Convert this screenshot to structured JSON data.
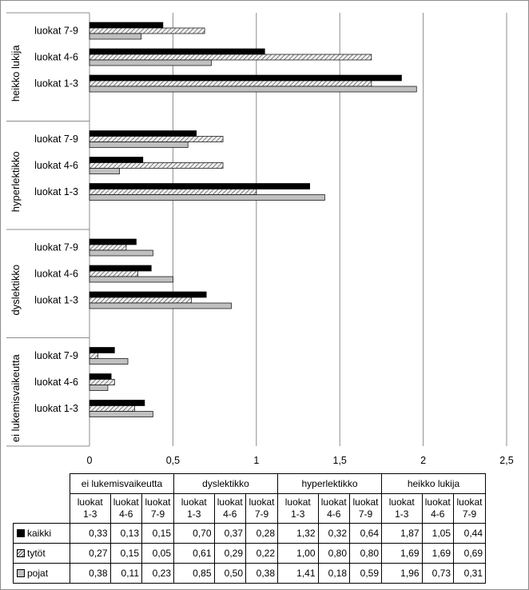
{
  "chart_data": {
    "type": "bar",
    "orientation": "horizontal",
    "groups": [
      "ei lukemisvaikeutta",
      "dyslektikko",
      "hyperlektikko",
      "heikko lukija"
    ],
    "subcategories": [
      "luokat 1-3",
      "luokat 4-6",
      "luokat 7-9"
    ],
    "table_subheaders": [
      {
        "line1": "luokat",
        "line2": "1-3"
      },
      {
        "line1": "luokat",
        "line2": "4-6"
      },
      {
        "line1": "luokat",
        "line2": "7-9"
      }
    ],
    "series": [
      {
        "name": "kaikki",
        "color": "#000000",
        "values": [
          [
            0.33,
            0.13,
            0.15
          ],
          [
            0.7,
            0.37,
            0.28
          ],
          [
            1.32,
            0.32,
            0.64
          ],
          [
            1.87,
            1.05,
            0.44
          ]
        ]
      },
      {
        "name": "tytöt",
        "color": "#c8c8c8",
        "pattern": "hatch",
        "values": [
          [
            0.27,
            0.15,
            0.05
          ],
          [
            0.61,
            0.29,
            0.22
          ],
          [
            1.0,
            0.8,
            0.8
          ],
          [
            1.69,
            1.69,
            0.69
          ]
        ]
      },
      {
        "name": "pojat",
        "color": "#c0c0c0",
        "values": [
          [
            0.38,
            0.11,
            0.23
          ],
          [
            0.85,
            0.5,
            0.38
          ],
          [
            1.41,
            0.18,
            0.59
          ],
          [
            1.96,
            0.73,
            0.31
          ]
        ]
      }
    ],
    "display_values": [
      [
        [
          "0,33",
          "0,13",
          "0,15"
        ],
        [
          "0,70",
          "0,37",
          "0,28"
        ],
        [
          "1,32",
          "0,32",
          "0,64"
        ],
        [
          "1,87",
          "1,05",
          "0,44"
        ]
      ],
      [
        [
          "0,27",
          "0,15",
          "0,05"
        ],
        [
          "0,61",
          "0,29",
          "0,22"
        ],
        [
          "1,00",
          "0,80",
          "0,80"
        ],
        [
          "1,69",
          "1,69",
          "0,69"
        ]
      ],
      [
        [
          "0,38",
          "0,11",
          "0,23"
        ],
        [
          "0,85",
          "0,50",
          "0,38"
        ],
        [
          "1,41",
          "0,18",
          "0,59"
        ],
        [
          "1,96",
          "0,73",
          "0,31"
        ]
      ]
    ],
    "xlim": [
      0,
      2.5
    ],
    "xticks": [
      0,
      0.5,
      1,
      1.5,
      2,
      2.5
    ],
    "xtick_labels": [
      "0",
      "0,5",
      "1",
      "1,5",
      "2",
      "2,5"
    ],
    "grid": true,
    "legend": "data-table-below",
    "title": "",
    "xlabel": "",
    "ylabel": ""
  }
}
